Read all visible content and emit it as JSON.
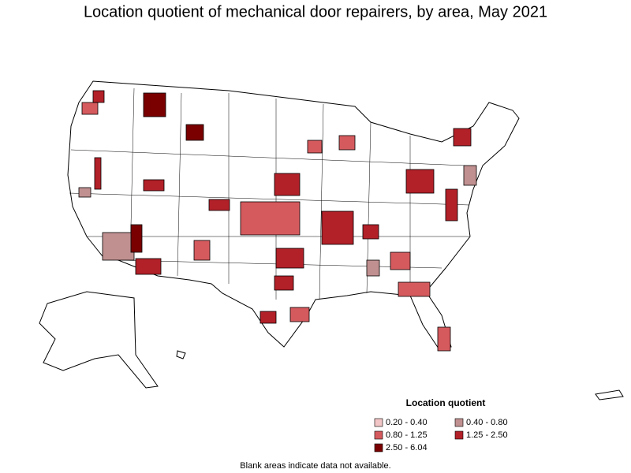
{
  "map": {
    "title": "Location quotient of mechanical door repairers, by area, May 2021",
    "legend": {
      "title": "Location quotient",
      "items": [
        {
          "label": "0.20 - 0.40",
          "color": "#f2c6c6"
        },
        {
          "label": "0.40 - 0.80",
          "color": "#c09090"
        },
        {
          "label": "0.80 - 1.25",
          "color": "#d55a5e"
        },
        {
          "label": "1.25 - 2.50",
          "color": "#b22028"
        },
        {
          "label": "2.50 - 6.04",
          "color": "#7a0000"
        }
      ]
    },
    "footnote": "Blank areas indicate data not available."
  }
}
